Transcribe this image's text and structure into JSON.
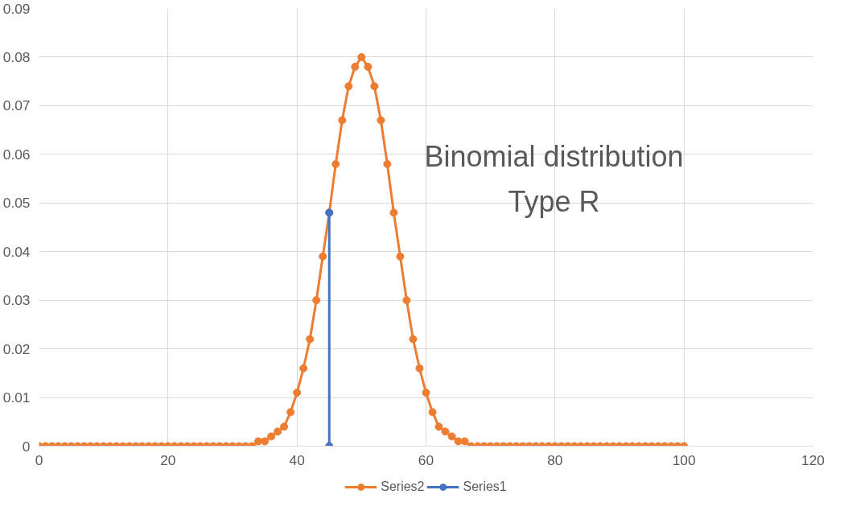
{
  "chart_data": {
    "type": "line",
    "x": [
      0,
      1,
      2,
      3,
      4,
      5,
      6,
      7,
      8,
      9,
      10,
      11,
      12,
      13,
      14,
      15,
      16,
      17,
      18,
      19,
      20,
      21,
      22,
      23,
      24,
      25,
      26,
      27,
      28,
      29,
      30,
      31,
      32,
      33,
      34,
      35,
      36,
      37,
      38,
      39,
      40,
      41,
      42,
      43,
      44,
      45,
      46,
      47,
      48,
      49,
      50,
      51,
      52,
      53,
      54,
      55,
      56,
      57,
      58,
      59,
      60,
      61,
      62,
      63,
      64,
      65,
      66,
      67,
      68,
      69,
      70,
      71,
      72,
      73,
      74,
      75,
      76,
      77,
      78,
      79,
      80,
      81,
      82,
      83,
      84,
      85,
      86,
      87,
      88,
      89,
      90,
      91,
      92,
      93,
      94,
      95,
      96,
      97,
      98,
      99,
      100
    ],
    "series": [
      {
        "name": "Series2",
        "color": "#ed7d31",
        "values": [
          0,
          0,
          0,
          0,
          0,
          0,
          0,
          0,
          0,
          0,
          0,
          0,
          0,
          0,
          0,
          0,
          0,
          0,
          0,
          0,
          0,
          0,
          0,
          0,
          0,
          0,
          0,
          0,
          0,
          0,
          0,
          0,
          0,
          0,
          0.001,
          0.001,
          0.002,
          0.003,
          0.004,
          0.007,
          0.011,
          0.016,
          0.022,
          0.03,
          0.039,
          0.048,
          0.058,
          0.067,
          0.074,
          0.078,
          0.08,
          0.078,
          0.074,
          0.067,
          0.058,
          0.048,
          0.039,
          0.03,
          0.022,
          0.016,
          0.011,
          0.007,
          0.004,
          0.003,
          0.002,
          0.001,
          0.001,
          0,
          0,
          0,
          0,
          0,
          0,
          0,
          0,
          0,
          0,
          0,
          0,
          0,
          0,
          0,
          0,
          0,
          0,
          0,
          0,
          0,
          0,
          0,
          0,
          0,
          0,
          0,
          0,
          0,
          0,
          0,
          0,
          0,
          0
        ]
      },
      {
        "name": "Series1",
        "color": "#4472c4",
        "x": [
          45,
          45
        ],
        "values": [
          0,
          0.048
        ]
      }
    ],
    "xlim": [
      0,
      120
    ],
    "xticks": [
      0,
      20,
      40,
      60,
      80,
      100,
      120
    ],
    "ylim": [
      0,
      0.09
    ],
    "yticks": [
      0,
      0.01,
      0.02,
      0.03,
      0.04,
      0.05,
      0.06,
      0.07,
      0.08,
      0.09
    ],
    "grid": true,
    "legend": "bottom",
    "marker": "circle",
    "annotations": [
      "Binomial distribution",
      "Type R"
    ]
  }
}
